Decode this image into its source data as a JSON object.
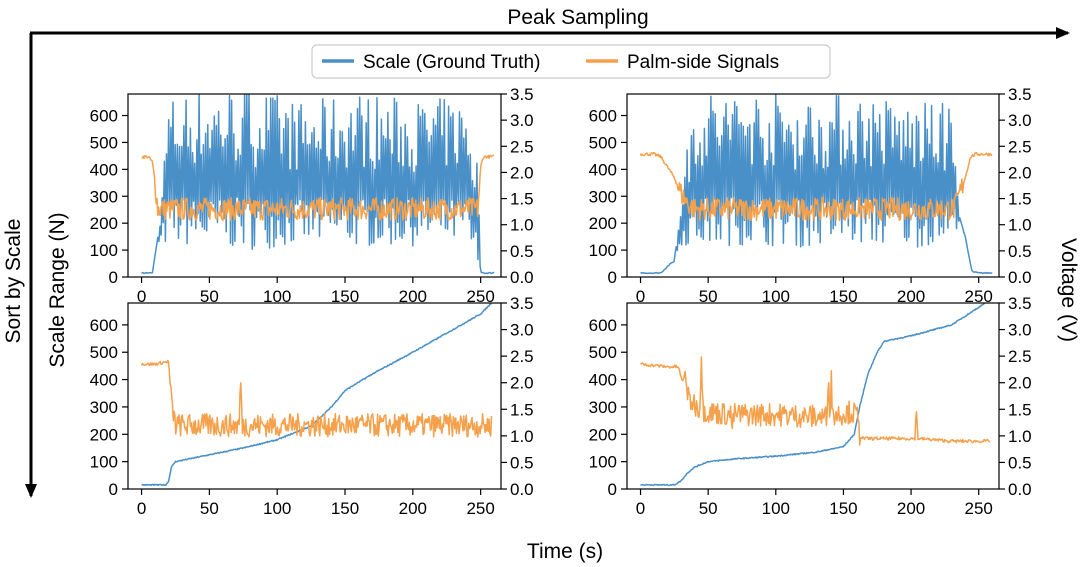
{
  "figure": {
    "top_arrow_label": "Peak Sampling",
    "left_arrow_label": "Sort by Scale",
    "xlabel": "Time (s)",
    "ylabel_left": "Scale Range (N)",
    "ylabel_right": "Voltage (V)",
    "legend": [
      {
        "label": "Scale (Ground Truth)",
        "color": "#4a90c8"
      },
      {
        "label": "Palm-side Signals",
        "color": "#f5a04a"
      }
    ],
    "colors": {
      "scale": "#4a90c8",
      "signal": "#f5a04a",
      "arrow": "#000000"
    }
  },
  "chart_data": [
    {
      "type": "line",
      "panel": "top-left",
      "grid": false,
      "xlim": [
        -10,
        265
      ],
      "ylim_left": [
        0,
        680
      ],
      "ylim_right": [
        0,
        3.5
      ],
      "xticks": [
        0,
        50,
        100,
        150,
        200,
        250
      ],
      "yticks_left": [
        0,
        100,
        200,
        300,
        400,
        500,
        600
      ],
      "yticks_right": [
        0.0,
        0.5,
        1.0,
        1.5,
        2.0,
        2.5,
        3.0,
        3.5
      ],
      "series": [
        {
          "name": "Scale (Ground Truth)",
          "axis": "left",
          "pattern": "oscillating",
          "x": [
            0,
            8,
            12,
            20,
            40,
            80,
            120,
            160,
            200,
            240,
            248,
            250,
            252,
            260
          ],
          "y": [
            15,
            15,
            150,
            620,
            650,
            660,
            600,
            640,
            610,
            620,
            400,
            20,
            15,
            15
          ],
          "band_low": [
            100,
            120,
            110,
            120,
            110,
            100,
            120,
            110,
            115,
            120,
            20,
            15,
            15,
            15
          ]
        },
        {
          "name": "Palm-side Signals",
          "axis": "right",
          "pattern": "oscillating",
          "x": [
            0,
            5,
            8,
            10,
            12,
            20,
            60,
            100,
            140,
            180,
            220,
            248,
            250,
            252,
            260
          ],
          "y": [
            2.3,
            2.3,
            2.2,
            1.8,
            1.3,
            1.3,
            1.3,
            1.3,
            1.3,
            1.3,
            1.3,
            1.3,
            2.1,
            2.3,
            2.3
          ]
        }
      ]
    },
    {
      "type": "line",
      "panel": "top-right",
      "grid": false,
      "xlim": [
        -10,
        265
      ],
      "ylim_left": [
        0,
        680
      ],
      "ylim_right": [
        0,
        3.5
      ],
      "xticks": [
        0,
        50,
        100,
        150,
        200,
        250
      ],
      "yticks_left": [
        0,
        100,
        200,
        300,
        400,
        500,
        600
      ],
      "yticks_right": [
        0.0,
        0.5,
        1.0,
        1.5,
        2.0,
        2.5,
        3.0,
        3.5
      ],
      "series": [
        {
          "name": "Scale (Ground Truth)",
          "axis": "left",
          "pattern": "oscillating",
          "x": [
            0,
            15,
            20,
            25,
            30,
            40,
            80,
            120,
            160,
            200,
            230,
            236,
            240,
            245,
            250,
            260
          ],
          "y": [
            15,
            15,
            40,
            60,
            300,
            640,
            650,
            620,
            640,
            600,
            600,
            220,
            150,
            20,
            15,
            15
          ],
          "band_low": [
            15,
            15,
            40,
            60,
            120,
            110,
            120,
            110,
            120,
            110,
            120,
            220,
            150,
            20,
            15,
            15
          ]
        },
        {
          "name": "Palm-side Signals",
          "axis": "right",
          "pattern": "oscillating",
          "x": [
            0,
            10,
            15,
            20,
            25,
            30,
            35,
            40,
            80,
            120,
            160,
            200,
            232,
            236,
            240,
            244,
            248,
            260
          ],
          "y": [
            2.35,
            2.35,
            2.3,
            2.1,
            1.9,
            1.6,
            1.4,
            1.3,
            1.3,
            1.3,
            1.3,
            1.3,
            1.3,
            1.6,
            1.9,
            2.3,
            2.35,
            2.35
          ]
        }
      ]
    },
    {
      "type": "line",
      "panel": "bottom-left",
      "grid": false,
      "xlim": [
        -10,
        265
      ],
      "ylim_left": [
        0,
        680
      ],
      "ylim_right": [
        0,
        3.5
      ],
      "xticks": [
        0,
        50,
        100,
        150,
        200,
        250
      ],
      "yticks_left": [
        0,
        100,
        200,
        300,
        400,
        500,
        600
      ],
      "yticks_right": [
        0.0,
        0.5,
        1.0,
        1.5,
        2.0,
        2.5,
        3.0,
        3.5
      ],
      "series": [
        {
          "name": "Scale (Ground Truth)",
          "axis": "left",
          "pattern": "smooth",
          "x": [
            0,
            18,
            20,
            22,
            25,
            50,
            75,
            100,
            125,
            140,
            150,
            170,
            200,
            225,
            250,
            258
          ],
          "y": [
            15,
            15,
            30,
            80,
            100,
            125,
            150,
            180,
            230,
            300,
            360,
            420,
            500,
            570,
            640,
            680
          ]
        },
        {
          "name": "Palm-side Signals",
          "axis": "right",
          "pattern": "oscillating",
          "x": [
            0,
            10,
            20,
            22,
            25,
            60,
            72,
            73,
            74,
            100,
            150,
            200,
            250,
            258
          ],
          "y": [
            2.35,
            2.35,
            2.4,
            1.6,
            1.2,
            1.2,
            1.2,
            2.2,
            1.2,
            1.2,
            1.2,
            1.2,
            1.2,
            1.2
          ]
        }
      ]
    },
    {
      "type": "line",
      "panel": "bottom-right",
      "grid": false,
      "xlim": [
        -10,
        265
      ],
      "ylim_left": [
        0,
        680
      ],
      "ylim_right": [
        0,
        3.5
      ],
      "xticks": [
        0,
        50,
        100,
        150,
        200,
        250
      ],
      "yticks_left": [
        0,
        100,
        200,
        300,
        400,
        500,
        600
      ],
      "yticks_right": [
        0.0,
        0.5,
        1.0,
        1.5,
        2.0,
        2.5,
        3.0,
        3.5
      ],
      "series": [
        {
          "name": "Scale (Ground Truth)",
          "axis": "left",
          "pattern": "smooth",
          "x": [
            0,
            25,
            30,
            35,
            40,
            50,
            70,
            100,
            130,
            150,
            158,
            162,
            168,
            175,
            180,
            200,
            230,
            258
          ],
          "y": [
            15,
            15,
            30,
            60,
            80,
            100,
            110,
            120,
            135,
            155,
            200,
            300,
            420,
            500,
            540,
            560,
            600,
            690
          ]
        },
        {
          "name": "Palm-side Signals",
          "axis": "right",
          "pattern": "oscillating",
          "x": [
            0,
            20,
            28,
            31,
            33,
            35,
            40,
            44,
            45,
            46,
            50,
            67,
            68,
            69,
            100,
            138,
            139,
            140,
            141,
            142,
            155,
            160,
            162,
            165,
            170,
            203,
            204,
            205,
            230,
            258
          ],
          "y": [
            2.35,
            2.3,
            2.3,
            2.0,
            2.2,
            1.7,
            1.6,
            1.5,
            2.5,
            1.5,
            1.45,
            1.4,
            1.1,
            1.4,
            1.4,
            1.35,
            2.2,
            1.35,
            2.2,
            1.4,
            1.45,
            1.4,
            1.0,
            0.95,
            0.95,
            0.95,
            1.45,
            0.95,
            0.9,
            0.9
          ]
        }
      ]
    }
  ]
}
